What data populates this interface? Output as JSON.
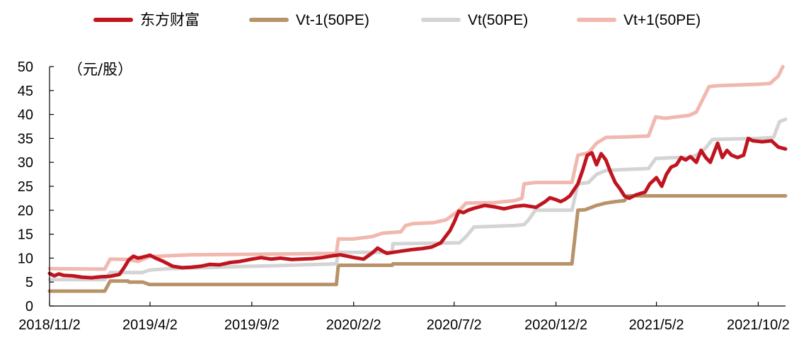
{
  "chart_data": {
    "type": "line",
    "unit_label": "（元/股）",
    "ylim": [
      0,
      50
    ],
    "y_ticks": [
      0,
      5,
      10,
      15,
      20,
      25,
      30,
      35,
      40,
      45,
      50
    ],
    "x_start": "2018-11-02",
    "x_end": "2021-11-12",
    "x_ticks": [
      {
        "date": "2018-11-02",
        "label": "2018/11/2"
      },
      {
        "date": "2019-04-02",
        "label": "2019/4/2"
      },
      {
        "date": "2019-09-02",
        "label": "2019/9/2"
      },
      {
        "date": "2020-02-02",
        "label": "2020/2/2"
      },
      {
        "date": "2020-07-02",
        "label": "2020/7/2"
      },
      {
        "date": "2020-12-02",
        "label": "2020/12/2"
      },
      {
        "date": "2021-05-02",
        "label": "2021/5/2"
      },
      {
        "date": "2021-10-02",
        "label": "2021/10/2"
      }
    ],
    "grid": false,
    "legend_position": "top",
    "series": [
      {
        "name": "东方财富",
        "color": "#c0141e",
        "stroke_width": 5,
        "points": [
          [
            "2018-11-02",
            6.8
          ],
          [
            "2018-11-09",
            6.3
          ],
          [
            "2018-11-16",
            6.7
          ],
          [
            "2018-11-23",
            6.4
          ],
          [
            "2018-12-07",
            6.3
          ],
          [
            "2018-12-21",
            6.0
          ],
          [
            "2019-01-04",
            5.9
          ],
          [
            "2019-01-18",
            6.1
          ],
          [
            "2019-02-01",
            6.2
          ],
          [
            "2019-02-15",
            6.6
          ],
          [
            "2019-02-22",
            8.0
          ],
          [
            "2019-03-01",
            9.6
          ],
          [
            "2019-03-08",
            10.4
          ],
          [
            "2019-03-15",
            10.0
          ],
          [
            "2019-03-22",
            10.2
          ],
          [
            "2019-04-02",
            10.6
          ],
          [
            "2019-04-12",
            9.9
          ],
          [
            "2019-04-22",
            9.3
          ],
          [
            "2019-05-06",
            8.3
          ],
          [
            "2019-05-20",
            8.0
          ],
          [
            "2019-06-03",
            8.1
          ],
          [
            "2019-06-17",
            8.3
          ],
          [
            "2019-07-01",
            8.7
          ],
          [
            "2019-07-15",
            8.6
          ],
          [
            "2019-08-01",
            9.1
          ],
          [
            "2019-08-15",
            9.3
          ],
          [
            "2019-09-02",
            9.8
          ],
          [
            "2019-09-16",
            10.1
          ],
          [
            "2019-10-01",
            9.8
          ],
          [
            "2019-10-15",
            10.0
          ],
          [
            "2019-11-01",
            9.7
          ],
          [
            "2019-11-15",
            9.8
          ],
          [
            "2019-12-02",
            9.9
          ],
          [
            "2019-12-16",
            10.1
          ],
          [
            "2020-01-02",
            10.5
          ],
          [
            "2020-01-13",
            10.7
          ],
          [
            "2020-02-03",
            10.1
          ],
          [
            "2020-02-17",
            9.8
          ],
          [
            "2020-03-02",
            11.2
          ],
          [
            "2020-03-09",
            12.1
          ],
          [
            "2020-03-16",
            11.5
          ],
          [
            "2020-03-23",
            11.0
          ],
          [
            "2020-04-01",
            11.2
          ],
          [
            "2020-04-15",
            11.5
          ],
          [
            "2020-05-01",
            11.8
          ],
          [
            "2020-05-15",
            12.0
          ],
          [
            "2020-05-29",
            12.3
          ],
          [
            "2020-06-12",
            13.2
          ],
          [
            "2020-06-19",
            14.5
          ],
          [
            "2020-06-26",
            15.8
          ],
          [
            "2020-07-02",
            17.5
          ],
          [
            "2020-07-09",
            19.8
          ],
          [
            "2020-07-16",
            19.5
          ],
          [
            "2020-07-23",
            20.0
          ],
          [
            "2020-08-03",
            20.5
          ],
          [
            "2020-08-17",
            21.0
          ],
          [
            "2020-09-01",
            20.7
          ],
          [
            "2020-09-15",
            20.3
          ],
          [
            "2020-10-01",
            20.8
          ],
          [
            "2020-10-15",
            21.0
          ],
          [
            "2020-11-02",
            20.6
          ],
          [
            "2020-11-16",
            21.8
          ],
          [
            "2020-11-23",
            22.6
          ],
          [
            "2020-12-02",
            22.2
          ],
          [
            "2020-12-09",
            21.8
          ],
          [
            "2020-12-16",
            22.3
          ],
          [
            "2020-12-23",
            23.0
          ],
          [
            "2021-01-04",
            25.5
          ],
          [
            "2021-01-11",
            28.3
          ],
          [
            "2021-01-18",
            31.5
          ],
          [
            "2021-01-25",
            32.0
          ],
          [
            "2021-02-01",
            29.5
          ],
          [
            "2021-02-08",
            31.8
          ],
          [
            "2021-02-15",
            30.5
          ],
          [
            "2021-02-22",
            28.0
          ],
          [
            "2021-03-01",
            25.8
          ],
          [
            "2021-03-08",
            24.5
          ],
          [
            "2021-03-15",
            23.0
          ],
          [
            "2021-03-22",
            22.5
          ],
          [
            "2021-04-01",
            23.2
          ],
          [
            "2021-04-15",
            23.8
          ],
          [
            "2021-04-22",
            25.5
          ],
          [
            "2021-05-02",
            26.8
          ],
          [
            "2021-05-10",
            25.0
          ],
          [
            "2021-05-17",
            27.5
          ],
          [
            "2021-05-24",
            29.0
          ],
          [
            "2021-06-01",
            29.5
          ],
          [
            "2021-06-08",
            31.0
          ],
          [
            "2021-06-15",
            30.5
          ],
          [
            "2021-06-22",
            31.2
          ],
          [
            "2021-07-01",
            30.0
          ],
          [
            "2021-07-08",
            32.5
          ],
          [
            "2021-07-15",
            31.0
          ],
          [
            "2021-07-22",
            30.0
          ],
          [
            "2021-08-02",
            34.0
          ],
          [
            "2021-08-09",
            31.0
          ],
          [
            "2021-08-16",
            32.5
          ],
          [
            "2021-08-23",
            31.5
          ],
          [
            "2021-09-01",
            31.0
          ],
          [
            "2021-09-10",
            31.5
          ],
          [
            "2021-09-17",
            35.0
          ],
          [
            "2021-09-24",
            34.5
          ],
          [
            "2021-10-08",
            34.3
          ],
          [
            "2021-10-22",
            34.5
          ],
          [
            "2021-11-01",
            33.2
          ],
          [
            "2021-11-12",
            32.8
          ]
        ]
      },
      {
        "name": "Vt-1(50PE)",
        "color": "#b8936a",
        "stroke_width": 5,
        "points": [
          [
            "2018-11-02",
            3.1
          ],
          [
            "2019-01-24",
            3.1
          ],
          [
            "2019-02-01",
            5.2
          ],
          [
            "2019-02-28",
            5.2
          ],
          [
            "2019-03-01",
            5.0
          ],
          [
            "2019-03-22",
            5.0
          ],
          [
            "2019-04-01",
            4.5
          ],
          [
            "2020-01-07",
            4.5
          ],
          [
            "2020-01-10",
            8.5
          ],
          [
            "2020-03-31",
            8.5
          ],
          [
            "2020-04-01",
            8.8
          ],
          [
            "2020-12-26",
            8.8
          ],
          [
            "2021-01-04",
            20.0
          ],
          [
            "2021-01-15",
            20.1
          ],
          [
            "2021-02-01",
            21.0
          ],
          [
            "2021-02-15",
            21.5
          ],
          [
            "2021-03-01",
            21.8
          ],
          [
            "2021-03-15",
            22.0
          ],
          [
            "2021-03-20",
            23.0
          ],
          [
            "2021-11-12",
            23.0
          ]
        ]
      },
      {
        "name": "Vt(50PE)",
        "color": "#d4d4d4",
        "stroke_width": 5,
        "points": [
          [
            "2018-11-02",
            5.5
          ],
          [
            "2019-01-24",
            5.5
          ],
          [
            "2019-02-01",
            7.0
          ],
          [
            "2019-03-22",
            7.0
          ],
          [
            "2019-04-01",
            7.5
          ],
          [
            "2019-05-01",
            7.8
          ],
          [
            "2019-08-01",
            8.2
          ],
          [
            "2019-10-01",
            8.4
          ],
          [
            "2020-01-07",
            8.8
          ],
          [
            "2020-01-10",
            11.2
          ],
          [
            "2020-03-31",
            11.2
          ],
          [
            "2020-04-01",
            13.0
          ],
          [
            "2020-07-10",
            13.2
          ],
          [
            "2020-07-20",
            14.5
          ],
          [
            "2020-08-01",
            16.5
          ],
          [
            "2020-10-01",
            16.8
          ],
          [
            "2020-10-15",
            17.0
          ],
          [
            "2020-10-22",
            18.0
          ],
          [
            "2020-11-01",
            20.0
          ],
          [
            "2020-12-26",
            20.0
          ],
          [
            "2021-01-04",
            25.5
          ],
          [
            "2021-01-20",
            25.8
          ],
          [
            "2021-02-01",
            27.5
          ],
          [
            "2021-02-15",
            28.3
          ],
          [
            "2021-03-15",
            28.5
          ],
          [
            "2021-04-20",
            28.7
          ],
          [
            "2021-05-01",
            30.8
          ],
          [
            "2021-06-01",
            31.0
          ],
          [
            "2021-06-20",
            31.0
          ],
          [
            "2021-07-01",
            31.5
          ],
          [
            "2021-07-15",
            33.0
          ],
          [
            "2021-07-25",
            34.8
          ],
          [
            "2021-10-01",
            35.0
          ],
          [
            "2021-10-25",
            35.2
          ],
          [
            "2021-11-03",
            38.5
          ],
          [
            "2021-11-12",
            39.0
          ]
        ]
      },
      {
        "name": "Vt+1(50PE)",
        "color": "#f0b8ae",
        "stroke_width": 5,
        "points": [
          [
            "2018-11-02",
            7.8
          ],
          [
            "2019-01-24",
            7.7
          ],
          [
            "2019-02-01",
            9.8
          ],
          [
            "2019-03-01",
            9.7
          ],
          [
            "2019-03-15",
            9.3
          ],
          [
            "2019-04-01",
            10.3
          ],
          [
            "2019-05-01",
            10.5
          ],
          [
            "2019-06-01",
            10.7
          ],
          [
            "2019-09-01",
            10.8
          ],
          [
            "2020-01-07",
            11.0
          ],
          [
            "2020-01-10",
            14.0
          ],
          [
            "2020-02-01",
            14.0
          ],
          [
            "2020-03-01",
            14.5
          ],
          [
            "2020-03-16",
            15.2
          ],
          [
            "2020-04-13",
            15.5
          ],
          [
            "2020-04-20",
            16.8
          ],
          [
            "2020-05-01",
            17.2
          ],
          [
            "2020-06-01",
            17.4
          ],
          [
            "2020-06-20",
            18.0
          ],
          [
            "2020-07-10",
            20.0
          ],
          [
            "2020-07-20",
            21.5
          ],
          [
            "2020-09-01",
            21.6
          ],
          [
            "2020-10-01",
            22.0
          ],
          [
            "2020-10-12",
            22.5
          ],
          [
            "2020-10-15",
            25.5
          ],
          [
            "2020-11-01",
            25.8
          ],
          [
            "2020-12-26",
            25.8
          ],
          [
            "2021-01-04",
            31.5
          ],
          [
            "2021-01-20",
            32.0
          ],
          [
            "2021-02-01",
            34.0
          ],
          [
            "2021-02-15",
            35.2
          ],
          [
            "2021-03-15",
            35.3
          ],
          [
            "2021-04-20",
            35.5
          ],
          [
            "2021-05-01",
            39.5
          ],
          [
            "2021-05-15",
            39.2
          ],
          [
            "2021-06-01",
            39.5
          ],
          [
            "2021-06-20",
            39.8
          ],
          [
            "2021-07-01",
            40.5
          ],
          [
            "2021-07-10",
            43.0
          ],
          [
            "2021-07-20",
            45.8
          ],
          [
            "2021-08-01",
            46.0
          ],
          [
            "2021-10-01",
            46.3
          ],
          [
            "2021-10-20",
            46.5
          ],
          [
            "2021-11-01",
            48.0
          ],
          [
            "2021-11-08",
            50.0
          ]
        ]
      }
    ]
  }
}
